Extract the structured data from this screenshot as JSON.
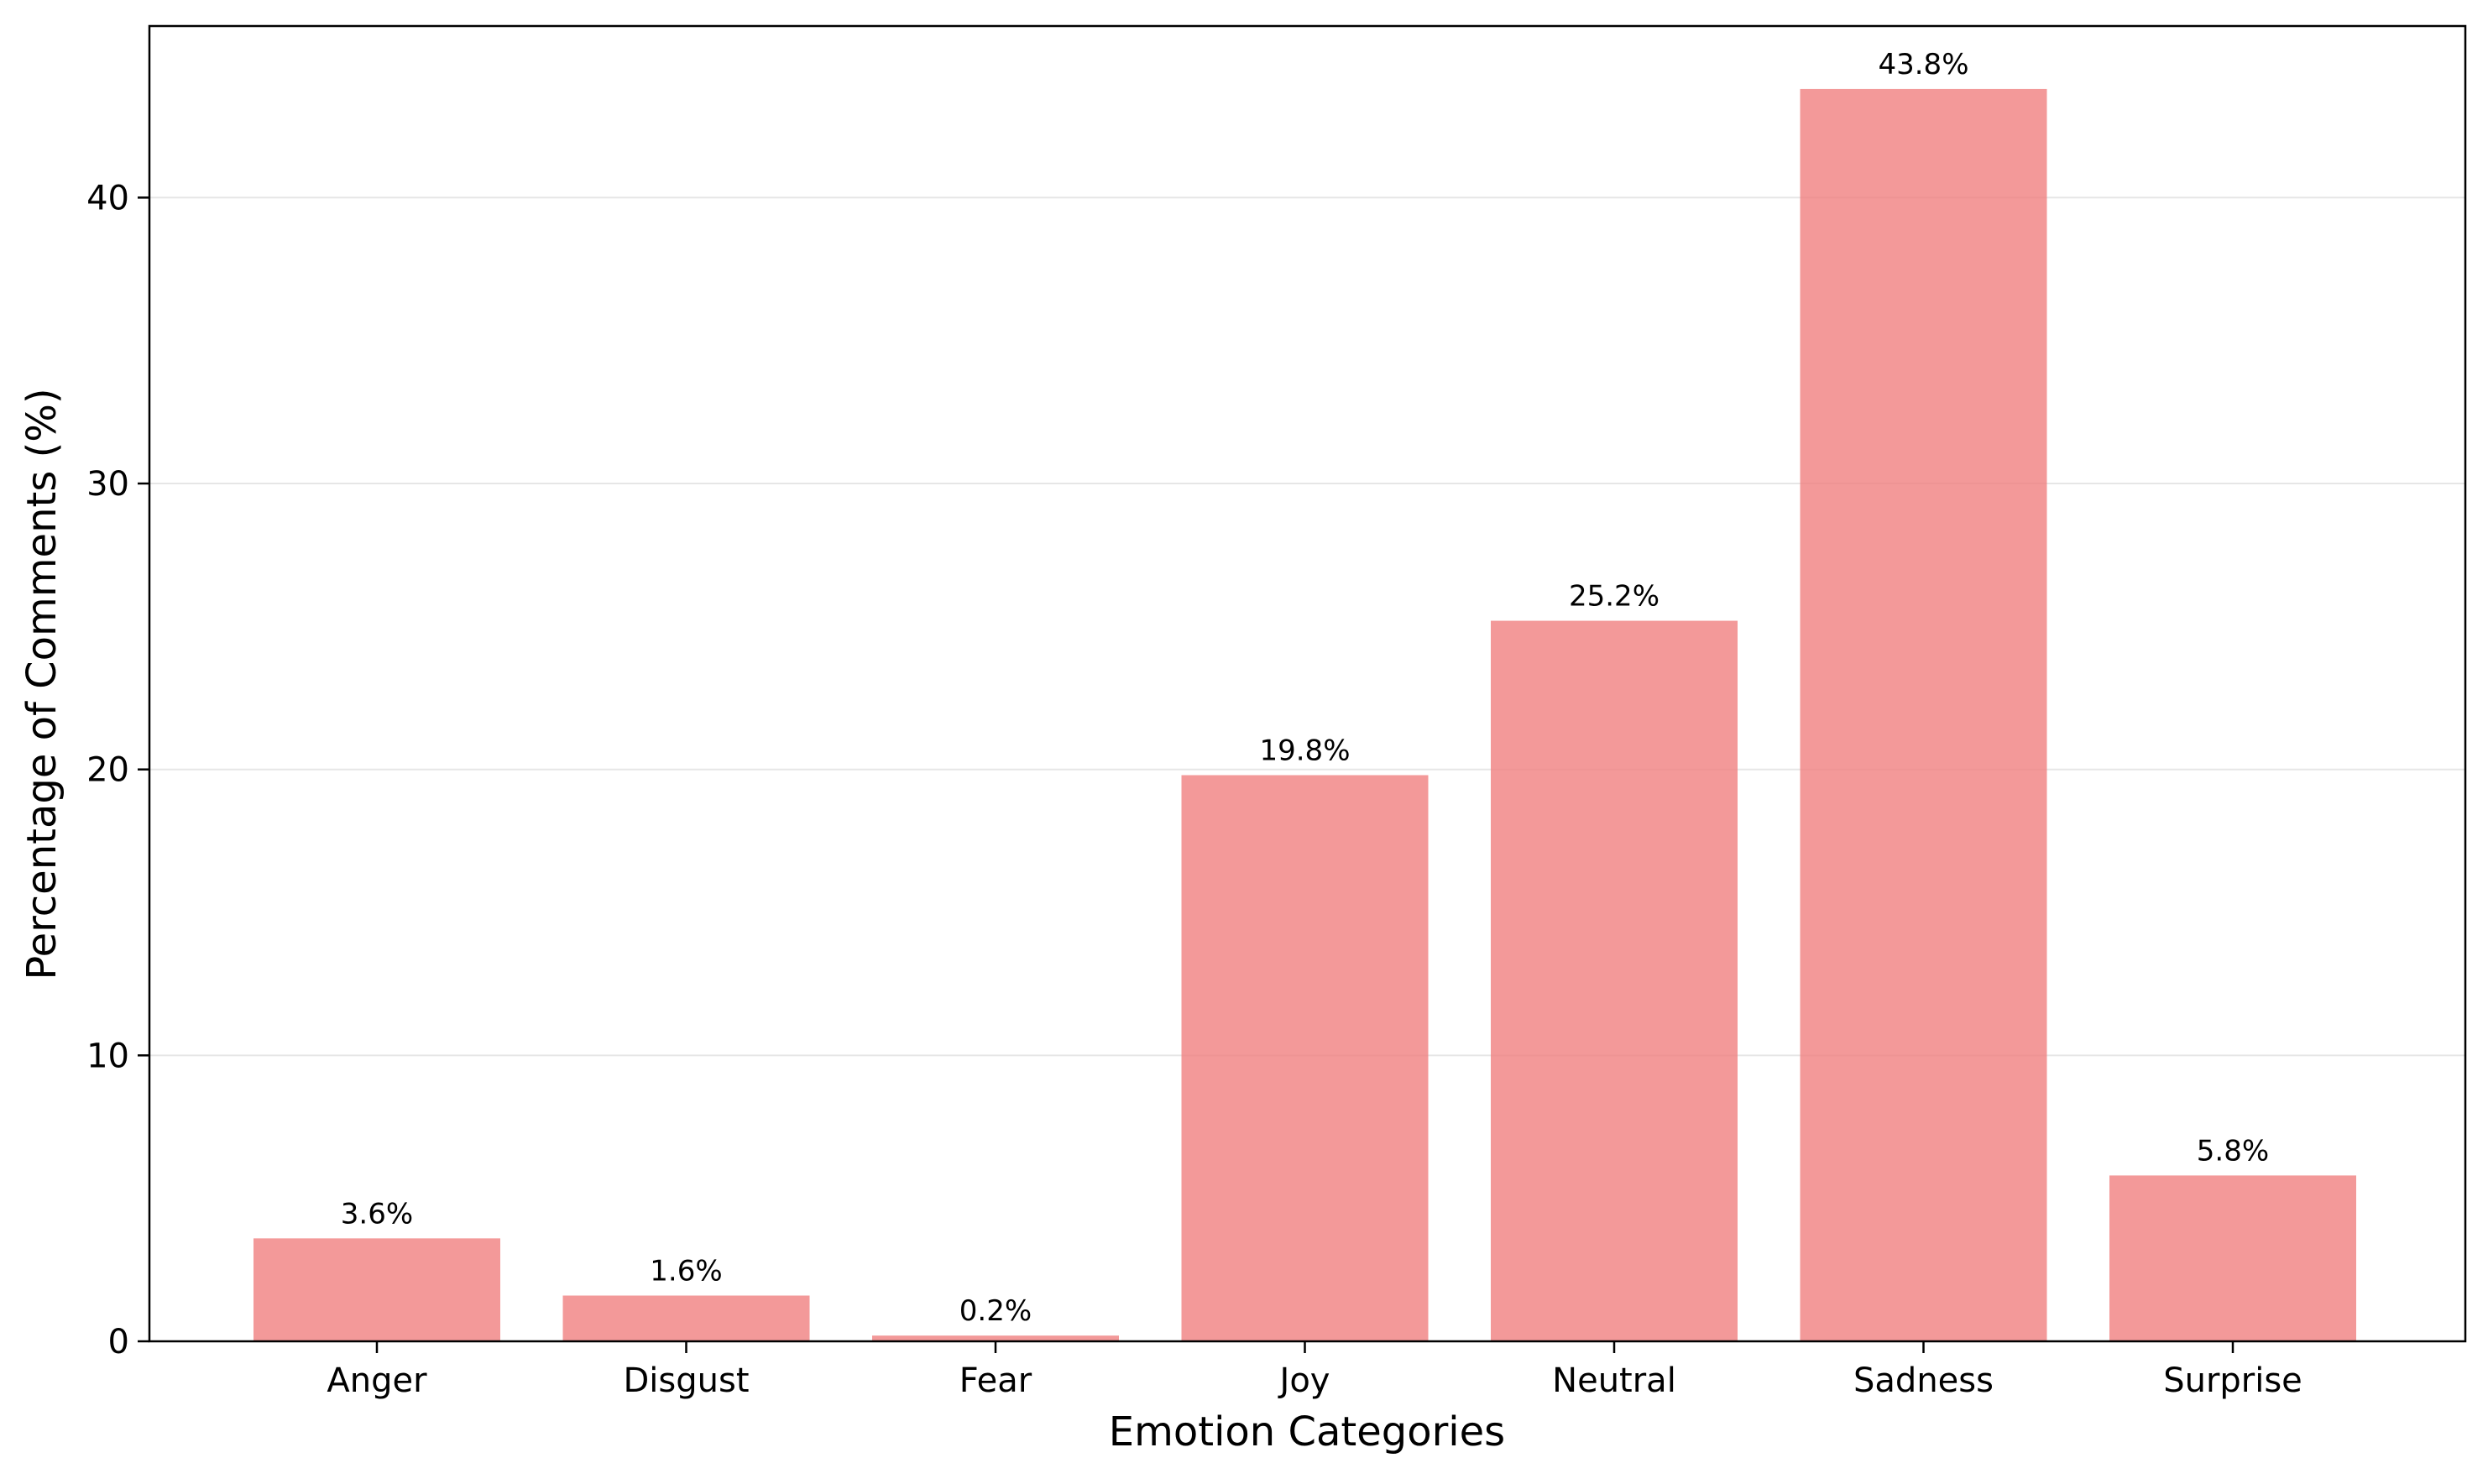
{
  "chart_data": {
    "type": "bar",
    "title": "",
    "xlabel": "Emotion Categories",
    "ylabel": "Percentage of Comments (%)",
    "categories": [
      "Anger",
      "Disgust",
      "Fear",
      "Joy",
      "Neutral",
      "Sadness",
      "Surprise"
    ],
    "values": [
      3.6,
      1.6,
      0.2,
      19.8,
      25.2,
      43.8,
      5.8
    ],
    "value_labels": [
      "3.6%",
      "1.6%",
      "0.2%",
      "19.8%",
      "25.2%",
      "43.8%",
      "5.8%"
    ],
    "ylim": [
      0,
      46
    ],
    "yticks": [
      0,
      10,
      20,
      30,
      40
    ],
    "ytick_labels": [
      "0",
      "10",
      "20",
      "30",
      "40"
    ],
    "grid": "y",
    "legend": "none",
    "colors": {
      "bar": "#f08080",
      "grid": "#e6e6e6",
      "axis": "#000000"
    }
  }
}
